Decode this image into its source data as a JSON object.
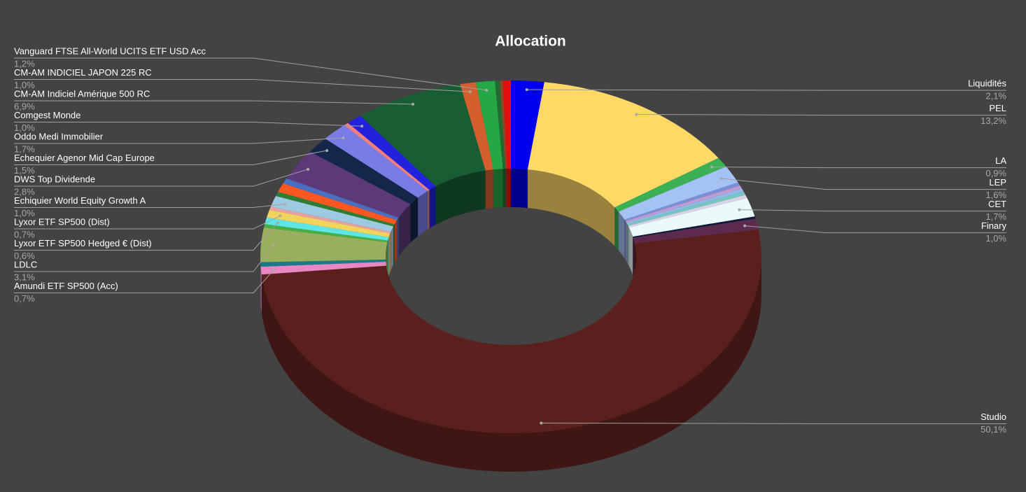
{
  "chart_data": {
    "type": "pie3d",
    "title": "Allocation",
    "categories": [
      "Liquidités",
      "PEL",
      "LA",
      "LEP",
      null,
      null,
      null,
      null,
      null,
      "CET",
      null,
      "Finary",
      "Studio",
      "Amundi ETF SP500 (Acc)",
      null,
      "LDLC",
      null,
      "Lyxor ETF SP500 Hedged € (Dist)",
      "Lyxor ETF SP500 (Dist)",
      null,
      "Echiquier World Equity Growth A",
      null,
      null,
      null,
      "DWS Top Dividende",
      "Echequier Agenor Mid Cap Europe",
      "Oddo Medi Immobilier",
      null,
      "Comgest Monde",
      "CM-AM Indiciel Amérique 500 RC",
      "CM-AM INDICIEL JAPON 225 RC",
      "Vanguard FTSE All-World UCITS ETF USD Acc",
      null,
      null,
      null
    ],
    "values": [
      2.1,
      13.2,
      0.9,
      1.6,
      0.3,
      0.3,
      0.3,
      0.3,
      0.3,
      1.7,
      0.2,
      1.0,
      50.1,
      0.7,
      0.4,
      3.1,
      0.3,
      0.6,
      0.7,
      0.3,
      1.0,
      0.4,
      0.8,
      0.5,
      2.8,
      1.5,
      1.7,
      0.3,
      1.0,
      6.9,
      1.0,
      1.2,
      0.3,
      0.2,
      0.5
    ],
    "value_labels": [
      "2,1%",
      "13,2%",
      "0,9%",
      "1,6%",
      null,
      null,
      null,
      null,
      null,
      "1,7%",
      null,
      "1,0%",
      "50,1%",
      "0,7%",
      null,
      "3,1%",
      null,
      "0,6%",
      "0,7%",
      null,
      "1,0%",
      null,
      null,
      null,
      "2,8%",
      "1,5%",
      "1,7%",
      null,
      "1,0%",
      "6,9%",
      "1,0%",
      "1,2%",
      null,
      null,
      null
    ],
    "colors": [
      "#0000ee",
      "#ffd966",
      "#3cb054",
      "#a4c2f4",
      "#7b8fd6",
      "#c39bd3",
      "#8fbce6",
      "#76c7c0",
      "#d9d2e9",
      "#eafafa",
      "#0c1a3a",
      "#5b2a4d",
      "#5b1f1d",
      "#e887c4",
      "#1a7a8a",
      "#9aaf5e",
      "#44b044",
      "#5ee6e6",
      "#f2d45c",
      "#e8a0a0",
      "#9ecae1",
      "#2e7d32",
      "#ff5722",
      "#4a6fc1",
      "#5c3a7a",
      "#14264a",
      "#7b7be6",
      "#f08080",
      "#2222dd",
      "#175e34",
      "#d35f2e",
      "#25a745",
      "#1f6b30",
      "#8a4a2a",
      "#e01010"
    ]
  }
}
